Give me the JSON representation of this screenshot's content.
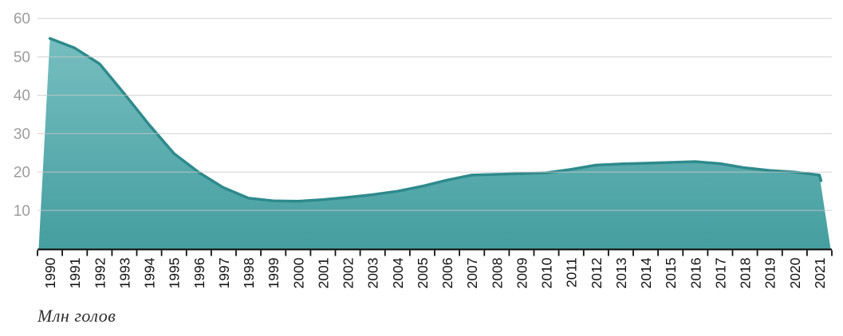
{
  "chart_data": {
    "type": "area",
    "title": "",
    "unit_label": "Млн голов",
    "categories": [
      "1990",
      "1991",
      "1992",
      "1993",
      "1994",
      "1995",
      "1996",
      "1997",
      "1998",
      "1999",
      "2000",
      "2001",
      "2002",
      "2003",
      "2004",
      "2005",
      "2006",
      "2007",
      "2008",
      "2009",
      "2010",
      "2011",
      "2012",
      "2013",
      "2014",
      "2015",
      "2016",
      "2017",
      "2018",
      "2019",
      "2020",
      "2021"
    ],
    "values": [
      54.8,
      52.3,
      48.2,
      40.4,
      32.3,
      24.8,
      19.9,
      15.9,
      13.2,
      12.5,
      12.4,
      12.8,
      13.4,
      14.1,
      15.0,
      16.3,
      17.9,
      19.2,
      19.4,
      19.6,
      19.8,
      20.7,
      21.8,
      22.1,
      22.3,
      22.5,
      22.7,
      22.2,
      21.1,
      20.4,
      20.0,
      19.2
    ],
    "ylim": [
      0,
      60
    ],
    "yticks": [
      10,
      20,
      30,
      40,
      50,
      60
    ],
    "grid": true,
    "legend": "none",
    "colors": {
      "area_top": "#7bc1c3",
      "area_bottom": "#459e9f",
      "line": "#2e8a8c",
      "gridline": "#c8c8c8",
      "axis": "#111111",
      "x_label": "#111111",
      "y_label": "#9c9c9c",
      "caption": "#2e2e2e"
    }
  }
}
